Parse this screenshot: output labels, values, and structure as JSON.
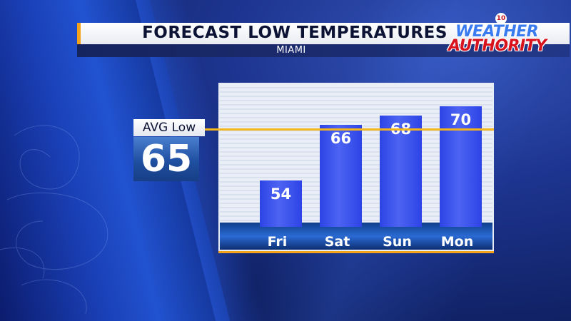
{
  "header": {
    "title": "FORECAST LOW TEMPERATURES",
    "subtitle": "MIAMI"
  },
  "logo": {
    "badge": "10",
    "line1": "WEATHER",
    "line2": "AUTHORITY"
  },
  "average": {
    "label": "AVG Low",
    "value": "65"
  },
  "colors": {
    "bar": "#2d44e6",
    "bar_highlight": "#4d63f2",
    "avg_line": "#f3b51a",
    "accent": "#f3a21a"
  },
  "chart_data": {
    "type": "bar",
    "categories": [
      "Fri",
      "Sat",
      "Sun",
      "Mon"
    ],
    "values": [
      54,
      66,
      68,
      70
    ],
    "data_labels": [
      "54",
      "66",
      "68",
      "70"
    ],
    "reference_line": 65,
    "ylim": [
      44,
      72
    ],
    "grid": false,
    "legend": "none"
  }
}
